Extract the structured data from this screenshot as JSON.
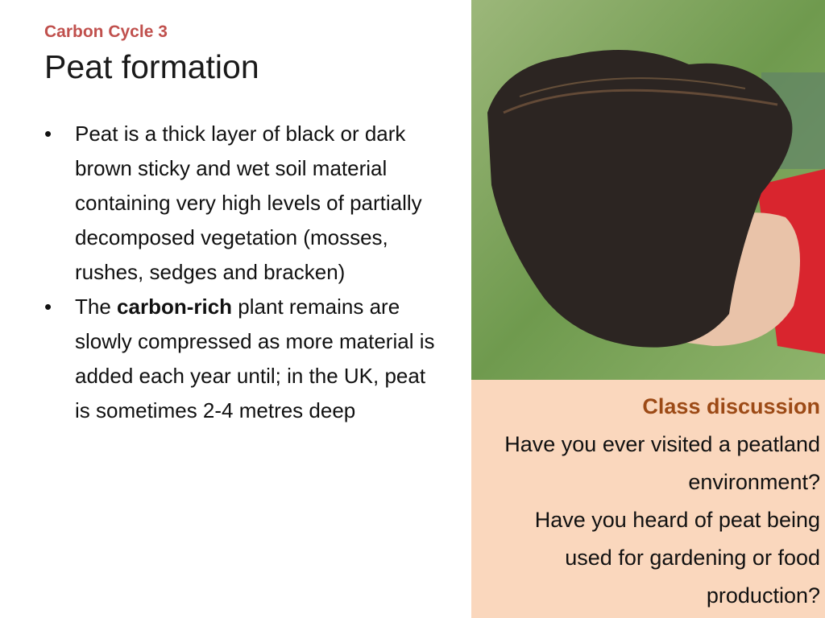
{
  "header": {
    "subtitle": "Carbon Cycle 3",
    "title": "Peat formation"
  },
  "bullets": [
    {
      "parts": [
        "Peat is a thick layer of black or dark brown sticky and wet soil material containing very high levels of partially decomposed vegetation (mosses, rushes, sedges and bracken)"
      ]
    },
    {
      "parts": [
        "The ",
        "carbon-rich",
        " plant remains are slowly compressed as more material is added each year until; in the UK, peat is sometimes 2-4 metres deep"
      ]
    }
  ],
  "discussion": {
    "heading": "Class discussion",
    "questions": [
      "Have you ever visited a peatland environment?",
      "Have you heard of peat being used for gardening or food production?"
    ]
  }
}
